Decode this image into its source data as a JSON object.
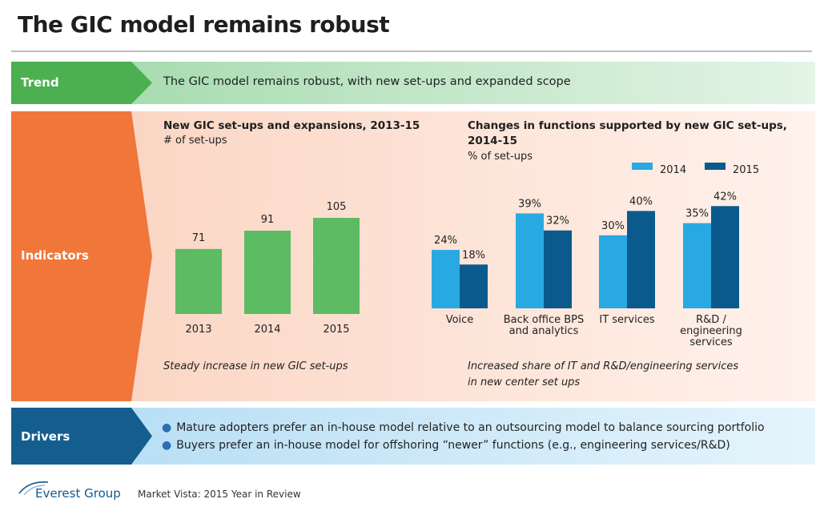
{
  "page_title": "The GIC model remains robust",
  "trend": {
    "label": "Trend",
    "text": "The GIC model remains robust, with new set-ups and expanded scope"
  },
  "indicators": {
    "label": "Indicators",
    "left_note": "Steady increase in new GIC set-ups",
    "right_note_line1": "Increased share of IT and R&D/engineering services",
    "right_note_line2": "in new center set ups"
  },
  "drivers": {
    "label": "Drivers",
    "items": [
      "Mature adopters prefer an in-house model relative to an outsourcing model to balance sourcing portfolio",
      "Buyers prefer an in-house model for offshoring “newer” functions (e.g., engineering services/R&D)"
    ]
  },
  "footer": {
    "brand": "Everest Group",
    "source": "Market Vista: 2015 Year in Review"
  },
  "colors": {
    "trend": "#4caf50",
    "indicators": "#f0763a",
    "drivers": "#135e8e",
    "bar_green": "#5dbb63",
    "bar_2014": "#29a9e1",
    "bar_2015": "#0b5a8d"
  },
  "chart_data": [
    {
      "type": "bar",
      "title": "New GIC set-ups and expansions, 2013-15",
      "subtitle": "# of set-ups",
      "categories": [
        "2013",
        "2014",
        "2015"
      ],
      "values": [
        71,
        91,
        105
      ],
      "ylim": [
        0,
        120
      ]
    },
    {
      "type": "bar",
      "title_line1": "Changes in functions supported by new GIC set-ups,",
      "title_line2": "2014-15",
      "subtitle": "% of set-ups",
      "categories": [
        {
          "lines": [
            "Voice"
          ]
        },
        {
          "lines": [
            "Back office BPS",
            "and analytics"
          ]
        },
        {
          "lines": [
            "IT services"
          ]
        },
        {
          "lines": [
            "R&D /",
            "engineering",
            "services"
          ]
        }
      ],
      "series": [
        {
          "name": "2014",
          "values": [
            24,
            39,
            30,
            35
          ],
          "labels": [
            "24%",
            "39%",
            "30%",
            "35%"
          ]
        },
        {
          "name": "2015",
          "values": [
            18,
            32,
            40,
            42
          ],
          "labels": [
            "18%",
            "32%",
            "40%",
            "42%"
          ]
        }
      ],
      "ylim": [
        0,
        50
      ],
      "legend_position": "top-right"
    }
  ]
}
